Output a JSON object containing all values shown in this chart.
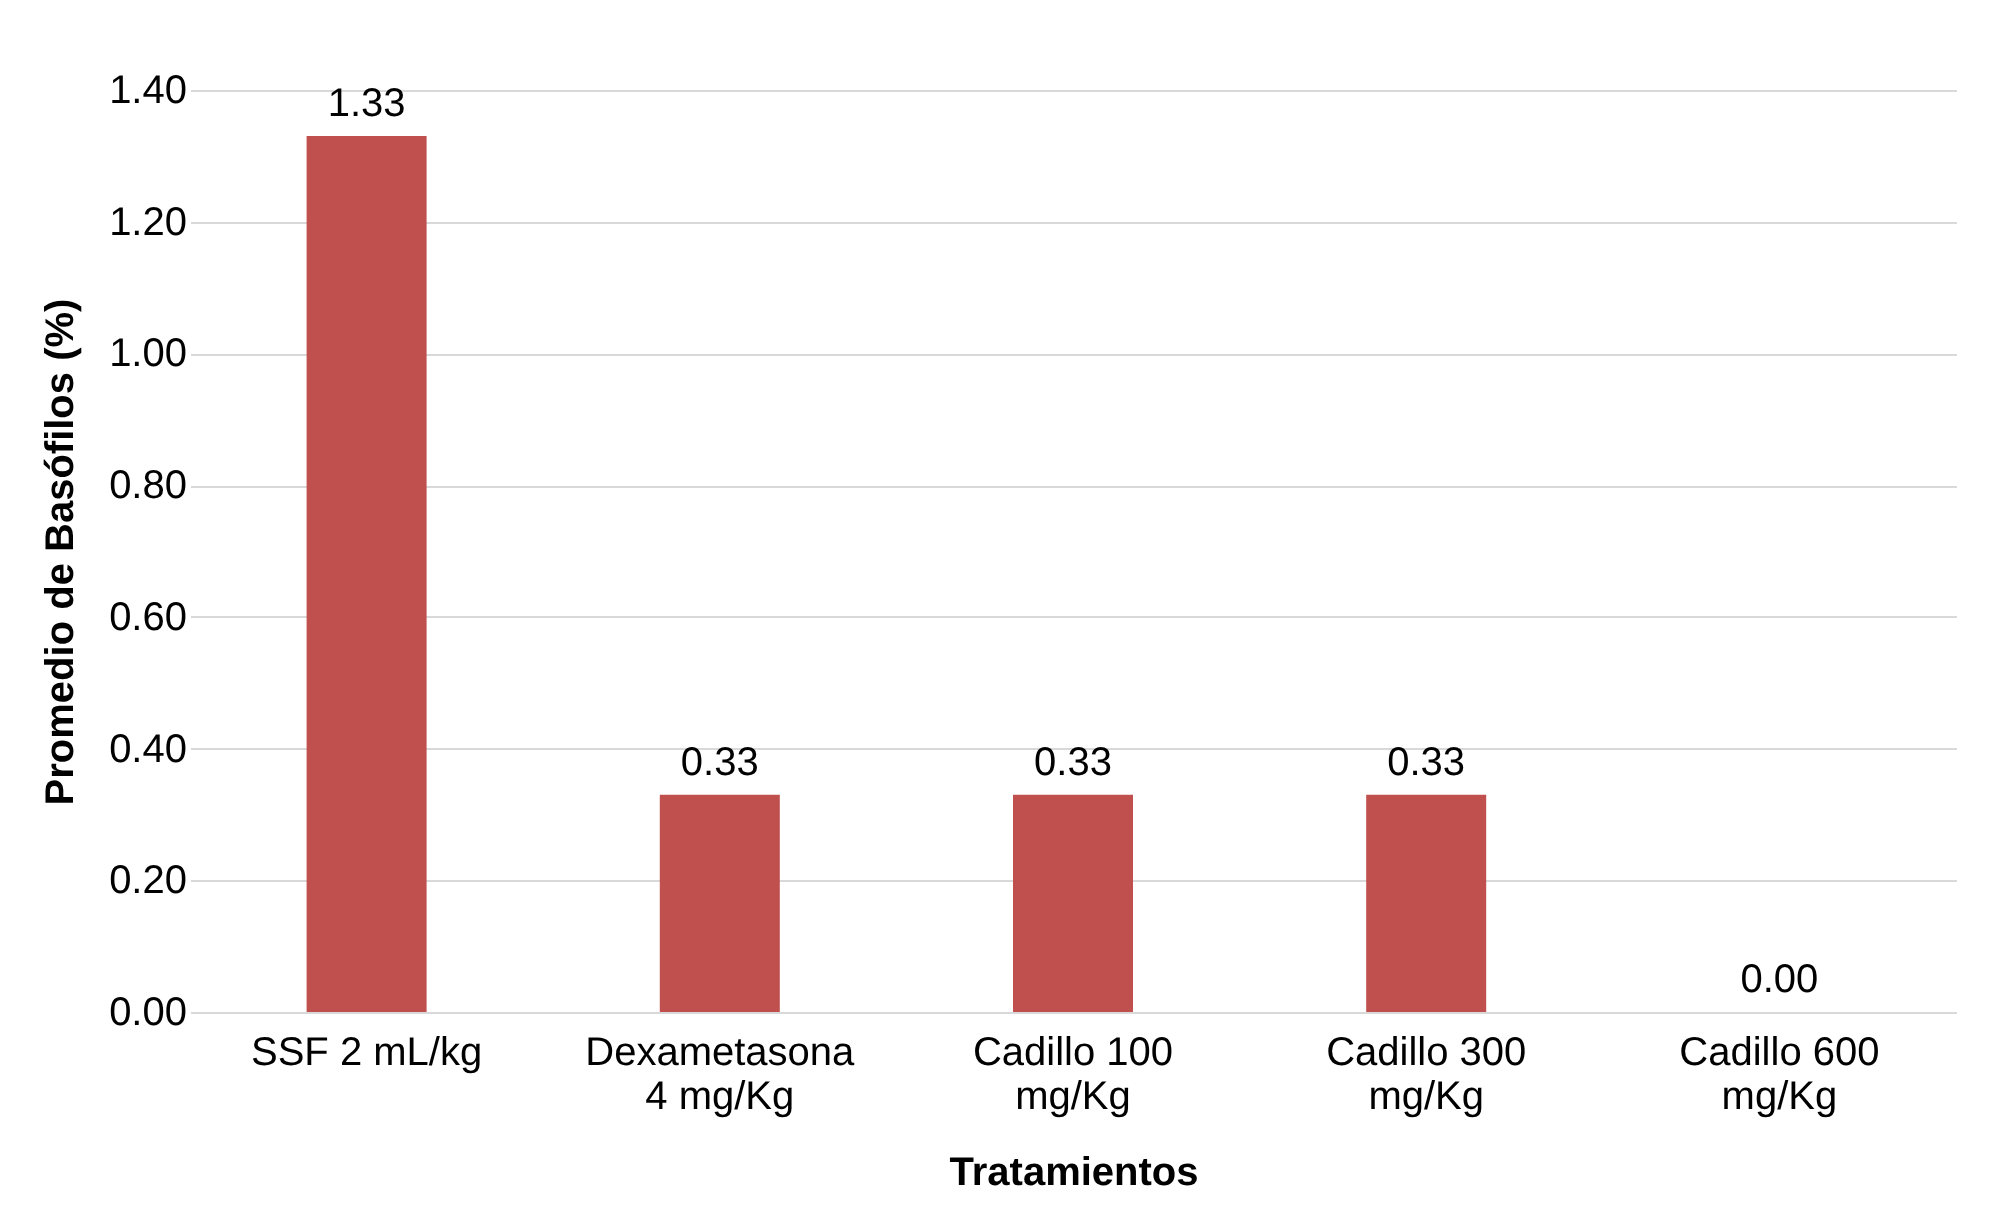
{
  "chart_data": {
    "type": "bar",
    "xlabel": "Tratamientos",
    "ylabel": "Promedio de Basófilos (%)",
    "categories": [
      "SSF 2 mL/kg",
      "Dexametasona\n4 mg/Kg",
      "Cadillo 100\nmg/Kg",
      "Cadillo 300\nmg/Kg",
      "Cadillo 600\nmg/Kg"
    ],
    "values": [
      1.33,
      0.33,
      0.33,
      0.33,
      0.0
    ],
    "value_labels": [
      "1.33",
      "0.33",
      "0.33",
      "0.33",
      "0.00"
    ],
    "color": "#c0504d",
    "ylim": [
      0,
      1.4
    ],
    "yticks": [
      {
        "value": 0,
        "label": "0.00"
      },
      {
        "value": 0.2,
        "label": "0.20"
      },
      {
        "value": 0.4,
        "label": "0.40"
      },
      {
        "value": 0.6,
        "label": "0.60"
      },
      {
        "value": 0.8,
        "label": "0.80"
      },
      {
        "value": 1.0,
        "label": "1.00"
      },
      {
        "value": 1.2,
        "label": "1.20"
      },
      {
        "value": 1.4,
        "label": "1.40"
      }
    ],
    "grid": "y"
  }
}
